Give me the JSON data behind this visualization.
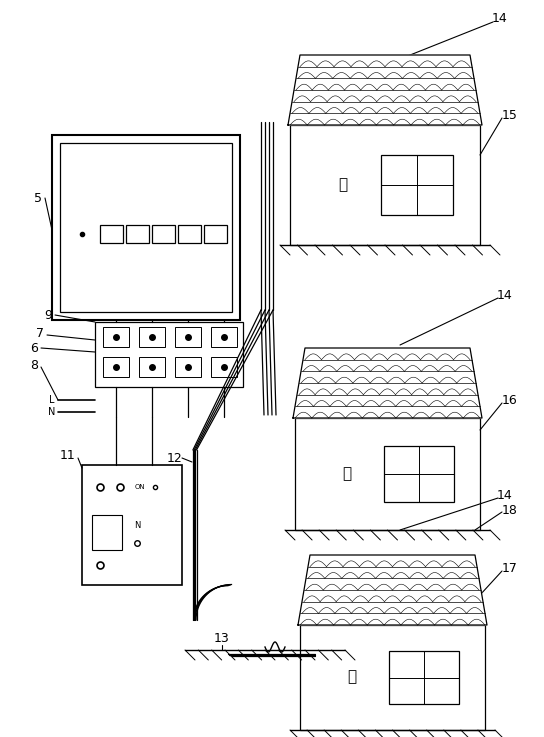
{
  "bg_color": "#ffffff",
  "line_color": "#000000",
  "house_label_A": "甲",
  "house_label_B": "乙",
  "house_label_C": "丙"
}
